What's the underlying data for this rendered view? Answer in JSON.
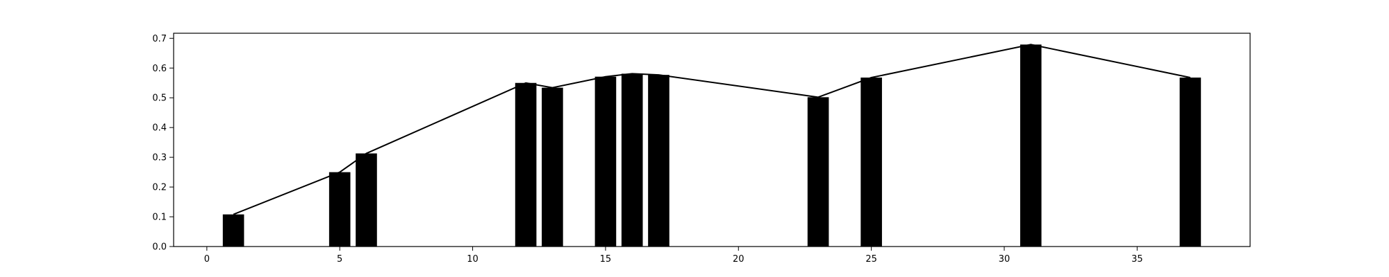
{
  "chart_data": {
    "type": "bar",
    "title": "",
    "xlabel": "",
    "ylabel": "",
    "xlim": [
      -1.25,
      39.25
    ],
    "ylim": [
      0,
      0.717
    ],
    "grid": false,
    "x": [
      1,
      5,
      6,
      12,
      13,
      15,
      16,
      17,
      23,
      25,
      31,
      37
    ],
    "values": [
      0.108,
      0.25,
      0.313,
      0.55,
      0.534,
      0.571,
      0.581,
      0.577,
      0.502,
      0.568,
      0.679,
      0.568
    ],
    "line_overlay": true,
    "bar_color": "#000000",
    "line_color": "#000000",
    "xticks": [
      0,
      5,
      10,
      15,
      20,
      25,
      30,
      35
    ],
    "yticks": [
      "0.0",
      "0.1",
      "0.2",
      "0.3",
      "0.4",
      "0.5",
      "0.6",
      "0.7"
    ]
  }
}
